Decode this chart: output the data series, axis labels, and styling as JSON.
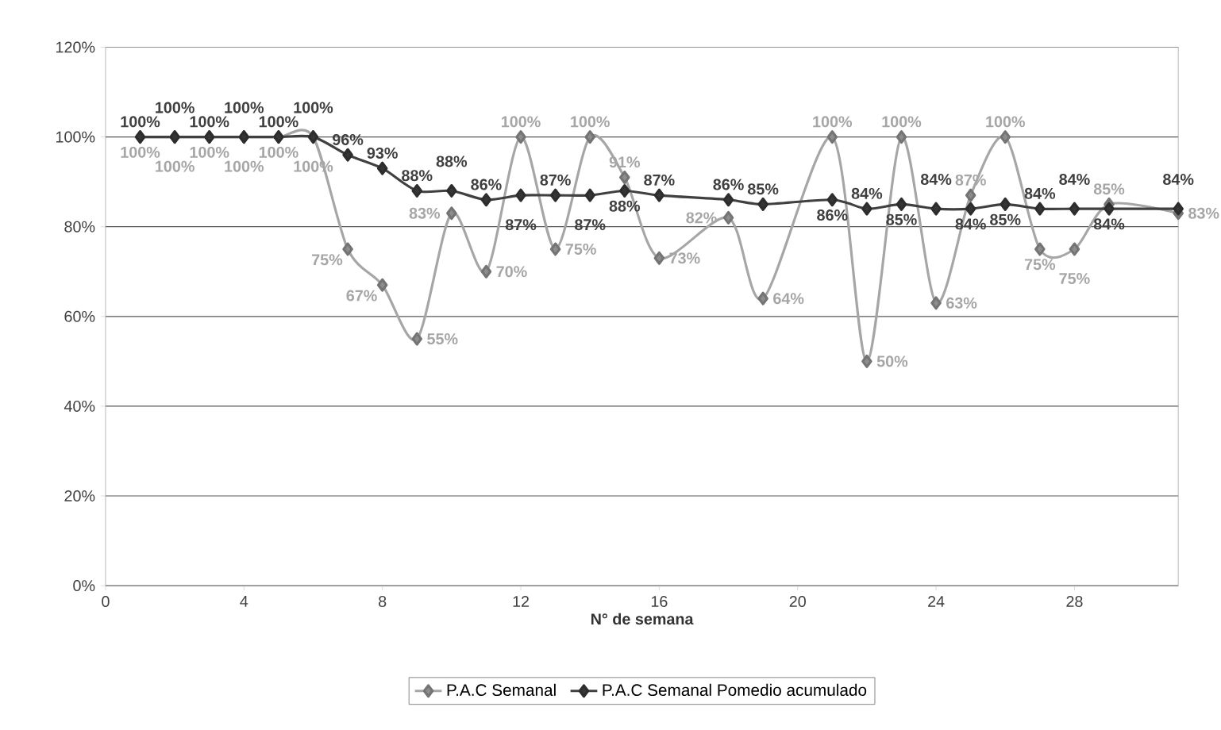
{
  "chart_data": {
    "type": "line",
    "xlabel": "N° de semana",
    "xlim": [
      0,
      31
    ],
    "xticks": [
      0,
      4,
      8,
      12,
      16,
      20,
      24,
      28
    ],
    "ylim": [
      0,
      120
    ],
    "yticks": [
      {
        "value": 0,
        "label": "0%"
      },
      {
        "value": 20,
        "label": "20%"
      },
      {
        "value": 40,
        "label": "40%"
      },
      {
        "value": 60,
        "label": "60%"
      },
      {
        "value": 80,
        "label": "80%"
      },
      {
        "value": 100,
        "label": "100%"
      },
      {
        "value": 120,
        "label": "120%"
      }
    ],
    "grid": "y",
    "legend": "bottom",
    "marker": "diamond",
    "line_style": "solid",
    "x": [
      1,
      2,
      3,
      4,
      5,
      6,
      7,
      8,
      9,
      10,
      11,
      12,
      13,
      14,
      15,
      16,
      18,
      19,
      21,
      22,
      23,
      24,
      25,
      26,
      27,
      28,
      29,
      31
    ],
    "series": [
      {
        "name": "P.A.C Semanal",
        "color": "#a6a6a6",
        "values": [
          100,
          100,
          100,
          100,
          100,
          100,
          75,
          67,
          55,
          83,
          70,
          100,
          75,
          100,
          91,
          73,
          82,
          64,
          100,
          50,
          100,
          63,
          87,
          100,
          75,
          75,
          85,
          83
        ],
        "value_labels": [
          "100%",
          "100%",
          "100%",
          "100%",
          "100%",
          "100%",
          "75%",
          "67%",
          "55%",
          "83%",
          "70%",
          "100%",
          "75%",
          "100%",
          "91%",
          "73%",
          "82%",
          "64%",
          "100%",
          "50%",
          "100%",
          "63%",
          "87%",
          "100%",
          "75%",
          "75%",
          "85%",
          "83%"
        ]
      },
      {
        "name": "P.A.C  Semanal Pomedio acumulado",
        "color": "#404040",
        "values": [
          100,
          100,
          100,
          100,
          100,
          100,
          96,
          93,
          88,
          88,
          86,
          87,
          87,
          87,
          88,
          87,
          86,
          85,
          86,
          84,
          85,
          84,
          84,
          85,
          84,
          84,
          84,
          84
        ],
        "value_labels": [
          "100%",
          "100%",
          "100%",
          "100%",
          "100%",
          "100%",
          "96%",
          "93%",
          "88%",
          "88%",
          "86%",
          "87%",
          "87%",
          "87%",
          "88%",
          "87%",
          "86%",
          "85%",
          "86%",
          "84%",
          "85%",
          "84%",
          "84%",
          "85%",
          "84%",
          "84%",
          "84%",
          "84%"
        ]
      }
    ]
  }
}
